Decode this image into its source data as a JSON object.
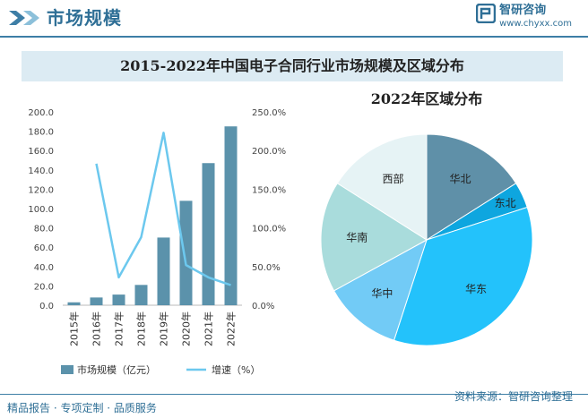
{
  "header": {
    "title": "市场规模",
    "brand_name": "智研咨询",
    "brand_url": "www.chyxx.com"
  },
  "colors": {
    "bar": "#5b92ab",
    "line": "#6cc8ee",
    "accent": "#2f6f96",
    "title_bg": "#dcebf3"
  },
  "chart_data": [
    {
      "type": "bar",
      "title": "2015-2022年中国电子合同行业市场规模及区域分布",
      "categories": [
        "2015年",
        "2016年",
        "2017年",
        "2018年",
        "2019年",
        "2020年",
        "2021年",
        "2022年"
      ],
      "series": [
        {
          "name": "市场规模（亿元）",
          "type": "bar",
          "axis": "left",
          "values": [
            3.0,
            8.0,
            11.0,
            21.0,
            70.0,
            108.0,
            147.0,
            185.0
          ]
        },
        {
          "name": "增速（%）",
          "type": "line",
          "axis": "right",
          "values": [
            null,
            183.0,
            36.0,
            88.0,
            223.0,
            52.0,
            36.0,
            26.0
          ]
        }
      ],
      "y_left": {
        "min": 0,
        "max": 200,
        "ticks": [
          "0.0",
          "20.0",
          "40.0",
          "60.0",
          "80.0",
          "100.0",
          "120.0",
          "140.0",
          "160.0",
          "180.0",
          "200.0"
        ]
      },
      "y_right": {
        "min": 0,
        "max": 250,
        "ticks": [
          "0.0%",
          "50.0%",
          "100.0%",
          "150.0%",
          "200.0%",
          "250.0%"
        ]
      },
      "legend_position": "bottom",
      "grid": false
    },
    {
      "type": "pie",
      "title": "2022年区域分布",
      "slices": [
        {
          "label": "华北",
          "value": 16,
          "color": "#5f90a8"
        },
        {
          "label": "东北",
          "value": 4,
          "color": "#0ea6df"
        },
        {
          "label": "华东",
          "value": 35,
          "color": "#23c2fb"
        },
        {
          "label": "华中",
          "value": 12,
          "color": "#72cbf6"
        },
        {
          "label": "华南",
          "value": 17,
          "color": "#a9dcdc"
        },
        {
          "label": "西部",
          "value": 16,
          "color": "#e6f3f5"
        }
      ]
    }
  ],
  "footer": {
    "left": "精品报告 · 专项定制 · 品质服务",
    "right": "资料来源：智研咨询整理"
  }
}
